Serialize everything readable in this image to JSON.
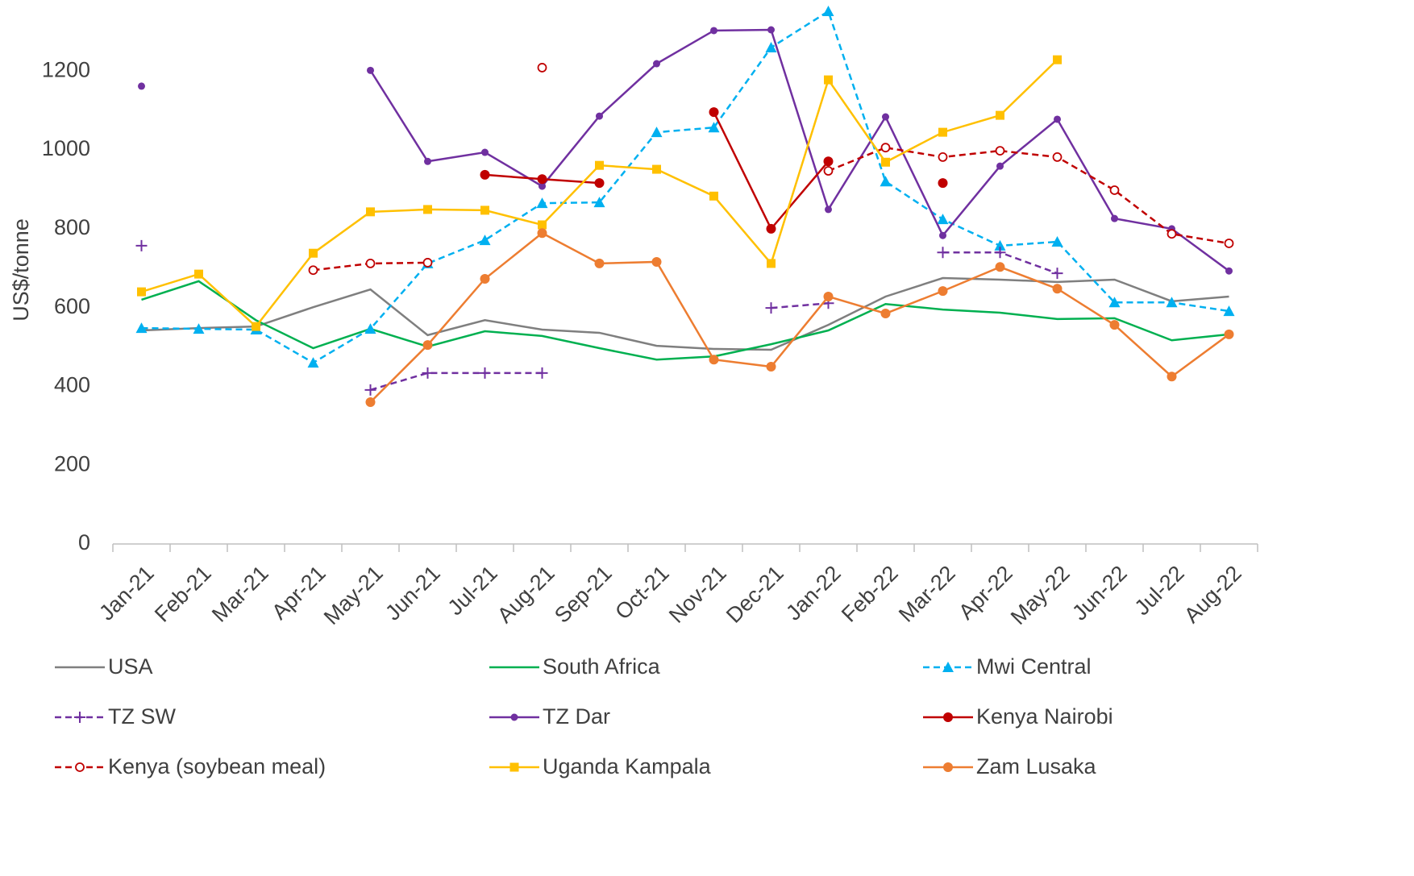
{
  "chart_data": {
    "type": "line",
    "y_label": "US$/tonne",
    "categories": [
      "Jan-21",
      "Feb-21",
      "Mar-21",
      "Apr-21",
      "May-21",
      "Jun-21",
      "Jul-21",
      "Aug-21",
      "Sep-21",
      "Oct-21",
      "Nov-21",
      "Dec-21",
      "Jan-22",
      "Feb-22",
      "Mar-22",
      "Apr-22",
      "May-22",
      "Jun-22",
      "Jul-22",
      "Aug-22"
    ],
    "ylim": [
      0,
      1350
    ],
    "yticks": [
      0,
      200,
      400,
      600,
      800,
      1000,
      1200
    ],
    "grid": false,
    "legend": "bottom",
    "series": [
      {
        "name": "USA",
        "color": "#7f7f7f",
        "marker": "none",
        "dash": false,
        "values": [
          542,
          548,
          552,
          601,
          646,
          530,
          568,
          544,
          536,
          503,
          495,
          493,
          556,
          628,
          675,
          671,
          665,
          671,
          616,
          628
        ]
      },
      {
        "name": "South Africa",
        "color": "#00b050",
        "marker": "none",
        "dash": false,
        "values": [
          620,
          667,
          568,
          497,
          546,
          501,
          540,
          528,
          497,
          468,
          476,
          507,
          542,
          609,
          595,
          587,
          571,
          573,
          517,
          532
        ]
      },
      {
        "name": "Mwi Central",
        "color": "#00b0f0",
        "marker": "triangle",
        "dash": true,
        "values": [
          548,
          546,
          544,
          460,
          546,
          712,
          771,
          865,
          867,
          1045,
          1057,
          1260,
          1352,
          920,
          824,
          757,
          767,
          613,
          613,
          591
        ]
      },
      {
        "name": "TZ SW",
        "color": "#7030a0",
        "marker": "plus",
        "dash": true,
        "values": [
          757,
          null,
          null,
          null,
          391,
          434,
          434,
          434,
          null,
          null,
          null,
          599,
          611,
          null,
          740,
          740,
          687,
          null,
          null,
          null
        ]
      },
      {
        "name": "TZ Dar",
        "color": "#7030a0",
        "marker": "circle",
        "dash": false,
        "values": [
          1162,
          null,
          null,
          null,
          1202,
          971,
          994,
          908,
          1086,
          1219,
          1303,
          1305,
          849,
          1084,
          783,
          959,
          1078,
          826,
          800,
          693
        ]
      },
      {
        "name": "Kenya Nairobi",
        "color": "#c00000",
        "marker": "bigcircle",
        "dash": false,
        "values": [
          null,
          null,
          null,
          null,
          null,
          null,
          937,
          926,
          916,
          null,
          1096,
          800,
          971,
          null,
          916,
          null,
          null,
          null,
          null,
          null
        ]
      },
      {
        "name": "Kenya (soybean meal)",
        "color": "#c00000",
        "marker": "opencircle",
        "dash": true,
        "values": [
          null,
          null,
          null,
          695,
          712,
          714,
          null,
          1209,
          null,
          null,
          null,
          null,
          947,
          1006,
          982,
          998,
          982,
          898,
          787,
          763
        ]
      },
      {
        "name": "Uganda Kampala",
        "color": "#ffc000",
        "marker": "square",
        "dash": false,
        "values": [
          640,
          685,
          552,
          738,
          843,
          849,
          847,
          810,
          961,
          951,
          883,
          712,
          1178,
          969,
          1045,
          1088,
          1229,
          null,
          null,
          null
        ]
      },
      {
        "name": "Zam Lusaka",
        "color": "#ed7d31",
        "marker": "bigcircle",
        "dash": false,
        "values": [
          null,
          null,
          null,
          null,
          360,
          505,
          673,
          789,
          712,
          716,
          468,
          450,
          628,
          585,
          642,
          703,
          648,
          556,
          425,
          532
        ]
      }
    ]
  }
}
